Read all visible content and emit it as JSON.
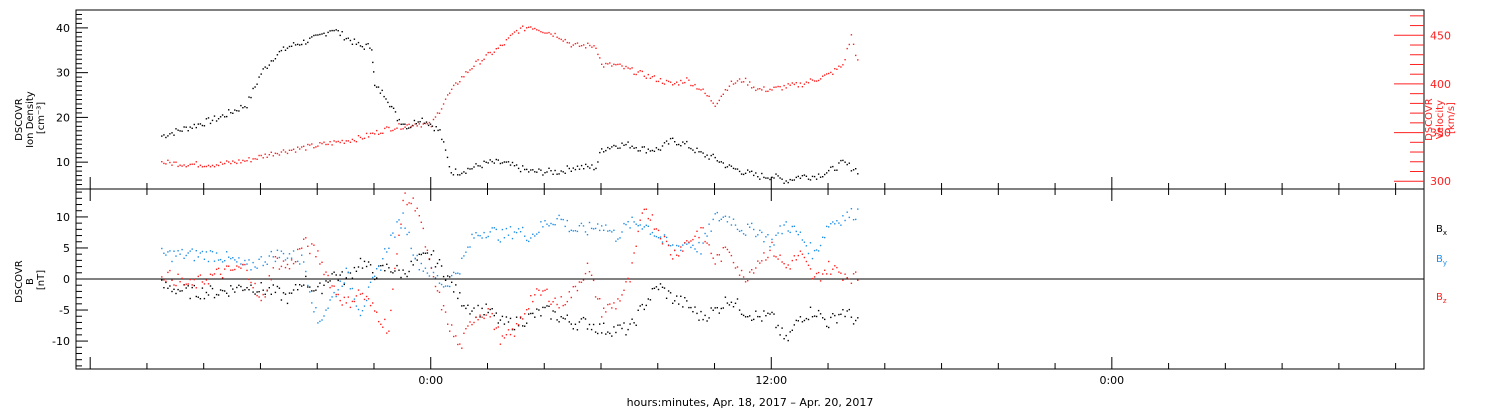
{
  "colors": {
    "black": "#000000",
    "red": "#ff2020",
    "blue": "#1f8fe6",
    "frame": "#000000"
  },
  "chart_data": [
    {
      "type": "scatter",
      "panel": "top",
      "ylabel_lines": [
        "DSCOVR",
        "Ion Density",
        "[cm⁻³]"
      ],
      "ylabel_right_lines": [
        "DSCOVR",
        "Velocity",
        "[km/s]"
      ],
      "left_yticks": [
        "10",
        "20",
        "30",
        "40"
      ],
      "right_yticks": [
        "300",
        "350",
        "400",
        "450"
      ],
      "ylim_left": [
        4,
        44
      ],
      "ylim_right": [
        292,
        476
      ],
      "series": [
        {
          "color": "black",
          "axis": "left",
          "points": [
            [
              -9.5,
              16
            ],
            [
              -8.5,
              18
            ],
            [
              -7.5,
              20
            ],
            [
              -6.5,
              23
            ],
            [
              -6,
              30
            ],
            [
              -5.5,
              34
            ],
            [
              -5,
              36
            ],
            [
              -4.5,
              37
            ],
            [
              -4,
              38
            ],
            [
              -3.5,
              40
            ],
            [
              -3,
              38
            ],
            [
              -2.5,
              36
            ],
            [
              -2.1,
              36
            ],
            [
              -2,
              27
            ],
            [
              -1.6,
              25
            ],
            [
              -1.2,
              20
            ],
            [
              -0.8,
              18
            ],
            [
              -0.4,
              20
            ],
            [
              -0.1,
              19
            ],
            [
              0.3,
              17
            ],
            [
              0.7,
              8
            ],
            [
              1,
              8
            ],
            [
              1.5,
              9
            ],
            [
              2,
              10
            ],
            [
              2.5,
              10
            ],
            [
              3,
              9
            ],
            [
              3.5,
              8
            ],
            [
              4,
              8
            ],
            [
              4.5,
              8
            ],
            [
              5,
              9
            ],
            [
              5.8,
              9
            ],
            [
              6,
              13
            ],
            [
              6.5,
              14
            ],
            [
              7,
              14
            ],
            [
              7.5,
              13
            ],
            [
              8,
              13
            ],
            [
              8.5,
              15
            ],
            [
              9,
              14
            ],
            [
              9.5,
              12
            ],
            [
              10,
              11
            ],
            [
              10.5,
              9
            ],
            [
              11,
              8
            ],
            [
              11.5,
              7
            ],
            [
              12,
              7
            ],
            [
              12.5,
              6
            ],
            [
              13,
              7
            ],
            [
              13.5,
              7
            ],
            [
              14,
              8
            ],
            [
              14.5,
              10
            ],
            [
              15.1,
              8
            ]
          ]
        },
        {
          "color": "red",
          "axis": "right",
          "points": [
            [
              -9.5,
              320
            ],
            [
              -8.5,
              318
            ],
            [
              -7.5,
              318
            ],
            [
              -6.5,
              322
            ],
            [
              -5.5,
              330
            ],
            [
              -4.5,
              335
            ],
            [
              -3.5,
              340
            ],
            [
              -2.5,
              345
            ],
            [
              -1.5,
              355
            ],
            [
              -0.5,
              360
            ],
            [
              0,
              358
            ],
            [
              0.5,
              385
            ],
            [
              1,
              405
            ],
            [
              1.5,
              420
            ],
            [
              2,
              430
            ],
            [
              2.5,
              440
            ],
            [
              3,
              455
            ],
            [
              3.5,
              460
            ],
            [
              4,
              455
            ],
            [
              4.5,
              450
            ],
            [
              5,
              440
            ],
            [
              5.8,
              440
            ],
            [
              6,
              420
            ],
            [
              6.5,
              420
            ],
            [
              7,
              415
            ],
            [
              7.5,
              410
            ],
            [
              8,
              405
            ],
            [
              8.5,
              400
            ],
            [
              9,
              405
            ],
            [
              9.5,
              395
            ],
            [
              10,
              380
            ],
            [
              10.5,
              400
            ],
            [
              11,
              405
            ],
            [
              11.5,
              395
            ],
            [
              12,
              395
            ],
            [
              12.5,
              398
            ],
            [
              13,
              400
            ],
            [
              13.5,
              405
            ],
            [
              14,
              410
            ],
            [
              14.5,
              420
            ],
            [
              14.8,
              450
            ],
            [
              15.1,
              415
            ]
          ]
        }
      ]
    },
    {
      "type": "scatter",
      "panel": "bottom",
      "ylabel_lines": [
        "DSCOVR",
        "B",
        "[nT]"
      ],
      "left_yticks": [
        "-10",
        "-5",
        "0",
        "5",
        "10"
      ],
      "ylim": [
        -14.5,
        14.5
      ],
      "legend": [
        {
          "name": "Bx",
          "base": "B",
          "sub": "x",
          "color": "black"
        },
        {
          "name": "By",
          "base": "B",
          "sub": "y",
          "color": "blue"
        },
        {
          "name": "Bz",
          "base": "B",
          "sub": "z",
          "color": "red"
        }
      ],
      "series": [
        {
          "name": "Bx",
          "color": "black",
          "points": [
            [
              -9.5,
              -1
            ],
            [
              -8.5,
              -2
            ],
            [
              -7.5,
              -2
            ],
            [
              -6.5,
              -1
            ],
            [
              -5.5,
              -2
            ],
            [
              -5,
              -3
            ],
            [
              -4.5,
              0
            ],
            [
              -4,
              -2
            ],
            [
              -3.5,
              1
            ],
            [
              -3,
              0
            ],
            [
              -2.5,
              3
            ],
            [
              -2,
              1
            ],
            [
              -1.5,
              2
            ],
            [
              -1,
              1
            ],
            [
              -0.5,
              3
            ],
            [
              0,
              4
            ],
            [
              0.5,
              1
            ],
            [
              1,
              -3
            ],
            [
              1.5,
              -5
            ],
            [
              2,
              -5
            ],
            [
              2.5,
              -7
            ],
            [
              3,
              -7
            ],
            [
              3.5,
              -6
            ],
            [
              4,
              -5
            ],
            [
              4.5,
              -6
            ],
            [
              5,
              -7
            ],
            [
              5.5,
              -7
            ],
            [
              6,
              -8
            ],
            [
              6.5,
              -8
            ],
            [
              7,
              -8
            ],
            [
              7.5,
              -4
            ],
            [
              8,
              -1
            ],
            [
              8.5,
              -3
            ],
            [
              9,
              -4
            ],
            [
              9.5,
              -6
            ],
            [
              10,
              -5
            ],
            [
              10.5,
              -3
            ],
            [
              11,
              -5
            ],
            [
              11.5,
              -6
            ],
            [
              12,
              -6
            ],
            [
              12.5,
              -10
            ],
            [
              13,
              -6
            ],
            [
              13.5,
              -5
            ],
            [
              14,
              -7
            ],
            [
              14.5,
              -5
            ],
            [
              15.1,
              -7
            ]
          ]
        },
        {
          "name": "By",
          "color": "blue",
          "points": [
            [
              -9.5,
              4
            ],
            [
              -8.5,
              4
            ],
            [
              -7.5,
              4
            ],
            [
              -6.5,
              2
            ],
            [
              -5.5,
              4
            ],
            [
              -5,
              4
            ],
            [
              -4.5,
              3
            ],
            [
              -4,
              -7
            ],
            [
              -3.5,
              -3
            ],
            [
              -3,
              1
            ],
            [
              -2.5,
              -5
            ],
            [
              -2,
              0
            ],
            [
              -1.5,
              6
            ],
            [
              -1,
              10
            ],
            [
              -0.5,
              3
            ],
            [
              0,
              1
            ],
            [
              0.5,
              -1
            ],
            [
              1,
              2
            ],
            [
              1.5,
              7
            ],
            [
              2,
              8
            ],
            [
              2.5,
              7
            ],
            [
              3,
              8
            ],
            [
              3.5,
              7
            ],
            [
              4,
              9
            ],
            [
              4.5,
              10
            ],
            [
              5,
              8
            ],
            [
              5.5,
              8
            ],
            [
              6,
              9
            ],
            [
              6.5,
              7
            ],
            [
              7,
              9
            ],
            [
              7.5,
              9
            ],
            [
              8,
              7
            ],
            [
              8.5,
              5
            ],
            [
              9,
              6
            ],
            [
              9.5,
              5
            ],
            [
              10,
              10
            ],
            [
              10.5,
              10
            ],
            [
              11,
              8
            ],
            [
              11.5,
              8
            ],
            [
              12,
              6
            ],
            [
              12.5,
              9
            ],
            [
              13,
              7
            ],
            [
              13.5,
              4
            ],
            [
              14,
              9
            ],
            [
              14.5,
              10
            ],
            [
              15.1,
              11
            ]
          ]
        },
        {
          "name": "Bz",
          "color": "red",
          "points": [
            [
              -9.5,
              1
            ],
            [
              -8.5,
              -1
            ],
            [
              -7.5,
              1
            ],
            [
              -6.5,
              2
            ],
            [
              -6,
              -4
            ],
            [
              -5.5,
              3
            ],
            [
              -5,
              2
            ],
            [
              -4.5,
              6
            ],
            [
              -4,
              4
            ],
            [
              -3.5,
              -1
            ],
            [
              -3,
              -4
            ],
            [
              -2.5,
              -2
            ],
            [
              -2,
              -5
            ],
            [
              -1.5,
              -8
            ],
            [
              -1,
              13
            ],
            [
              -0.5,
              12
            ],
            [
              0,
              1
            ],
            [
              0.5,
              -6
            ],
            [
              1,
              -11
            ],
            [
              1.5,
              -6
            ],
            [
              2,
              -5
            ],
            [
              2.5,
              -10
            ],
            [
              3,
              -8
            ],
            [
              3.5,
              -3
            ],
            [
              4,
              -2
            ],
            [
              4.5,
              -4
            ],
            [
              5,
              -2
            ],
            [
              5.5,
              2
            ],
            [
              6,
              -5
            ],
            [
              6.5,
              -4
            ],
            [
              7,
              0
            ],
            [
              7.5,
              12
            ],
            [
              8,
              8
            ],
            [
              8.5,
              4
            ],
            [
              9,
              6
            ],
            [
              9.5,
              8
            ],
            [
              10,
              3
            ],
            [
              10.5,
              5
            ],
            [
              11,
              0
            ],
            [
              11.5,
              3
            ],
            [
              12,
              5
            ],
            [
              12.5,
              2
            ],
            [
              13,
              4
            ],
            [
              13.5,
              0
            ],
            [
              14,
              2
            ],
            [
              14.5,
              1
            ],
            [
              15.1,
              0
            ]
          ]
        }
      ]
    }
  ],
  "x_axis": {
    "tick_labels": [
      "0:00",
      "12:00",
      "0:00"
    ],
    "xlim_hours": [
      -12.5,
      35
    ],
    "title": "hours:minutes, Apr. 18, 2017 – Apr. 20, 2017"
  }
}
